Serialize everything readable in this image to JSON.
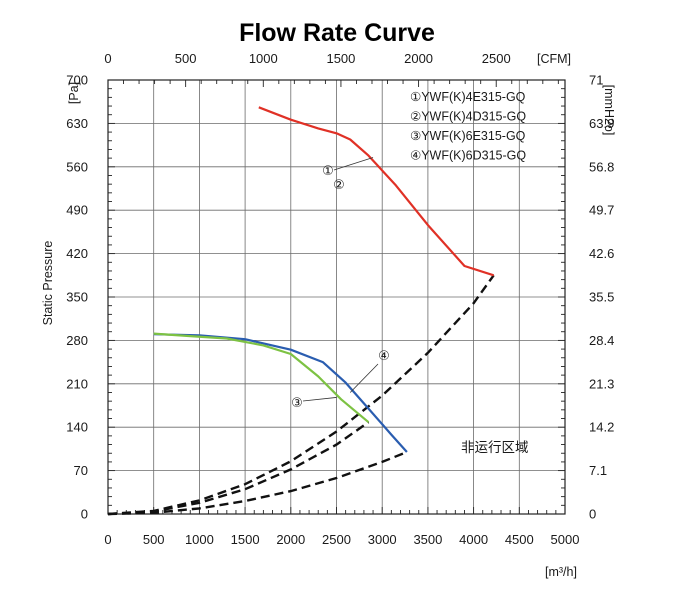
{
  "chart_data": {
    "type": "line",
    "title": "Flow Rate Curve",
    "ylabel": "Static Pressure",
    "x_unit": "[m³/h]",
    "x_top_unit": "[CFM]",
    "y_unit": "[Pa]",
    "y_right_unit": "[mmH2o]",
    "xlim": [
      0,
      5000
    ],
    "ylim": [
      0,
      700
    ],
    "x_ticks": [
      "0",
      "500",
      "1000",
      "1500",
      "2000",
      "2500",
      "3000",
      "3500",
      "4000",
      "4500",
      "5000"
    ],
    "x_top_ticks": [
      {
        "label": "0",
        "cfm": 0
      },
      {
        "label": "500",
        "cfm": 500
      },
      {
        "label": "1000",
        "cfm": 1000
      },
      {
        "label": "1500",
        "cfm": 1500
      },
      {
        "label": "2000",
        "cfm": 2000
      },
      {
        "label": "2500",
        "cfm": 2500
      }
    ],
    "y_ticks": [
      "0",
      "70",
      "140",
      "210",
      "280",
      "350",
      "420",
      "490",
      "560",
      "630",
      "700"
    ],
    "y_right_ticks": [
      "0",
      "7.1",
      "14.2",
      "21.3",
      "28.4",
      "35.5",
      "42.6",
      "49.7",
      "56.8",
      "63.9",
      "71"
    ],
    "grid": true,
    "legend_position": "top-right",
    "legend": [
      "①YWF(K)4E315-GQ",
      "②YWF(K)4D315-GQ",
      "③YWF(K)6E315-GQ",
      "④YWF(K)6D315-GQ"
    ],
    "series": [
      {
        "color": "#e03126",
        "tags": [
          "①",
          "②"
        ],
        "points": [
          [
            1650,
            656
          ],
          [
            2000,
            636
          ],
          [
            2300,
            622
          ],
          [
            2500,
            614
          ],
          [
            2650,
            604
          ],
          [
            2850,
            578
          ],
          [
            3150,
            530
          ],
          [
            3500,
            466
          ],
          [
            3900,
            400
          ],
          [
            4220,
            385
          ]
        ]
      },
      {
        "color": "#2a5db0",
        "tags": [
          "④"
        ],
        "points": [
          [
            500,
            290
          ],
          [
            1000,
            288
          ],
          [
            1500,
            282
          ],
          [
            2000,
            265
          ],
          [
            2350,
            245
          ],
          [
            2600,
            212
          ],
          [
            2850,
            170
          ],
          [
            3100,
            128
          ],
          [
            3270,
            100
          ]
        ]
      },
      {
        "color": "#7dc243",
        "tags": [
          "③"
        ],
        "points": [
          [
            500,
            291
          ],
          [
            900,
            287
          ],
          [
            1300,
            283
          ],
          [
            1700,
            272
          ],
          [
            2000,
            258
          ],
          [
            2300,
            222
          ],
          [
            2550,
            185
          ],
          [
            2850,
            148
          ]
        ]
      }
    ],
    "system_curves": [
      {
        "points": [
          [
            0,
            0
          ],
          [
            500,
            5
          ],
          [
            1000,
            22
          ],
          [
            1500,
            48
          ],
          [
            2000,
            85
          ],
          [
            2500,
            133
          ],
          [
            3000,
            191
          ],
          [
            3500,
            260
          ],
          [
            4000,
            340
          ],
          [
            4220,
            385
          ]
        ]
      },
      {
        "points": [
          [
            0,
            0
          ],
          [
            500,
            4
          ],
          [
            1000,
            18
          ],
          [
            1500,
            40
          ],
          [
            2000,
            72
          ],
          [
            2500,
            112
          ],
          [
            2850,
            148
          ]
        ]
      },
      {
        "points": [
          [
            0,
            0
          ],
          [
            500,
            2
          ],
          [
            1000,
            9
          ],
          [
            1500,
            21
          ],
          [
            2000,
            37
          ],
          [
            2500,
            58
          ],
          [
            3000,
            84
          ],
          [
            3270,
            100
          ]
        ]
      }
    ],
    "curve_tags": [
      {
        "text": "①",
        "points_to": [
          2900,
          575
        ]
      },
      {
        "text": "②",
        "points_to": [
          2900,
          575
        ]
      },
      {
        "text": "③",
        "points_to": [
          2500,
          188
        ]
      },
      {
        "text": "④",
        "points_to": [
          2650,
          196
        ]
      }
    ],
    "region_label": "非运行区域"
  }
}
